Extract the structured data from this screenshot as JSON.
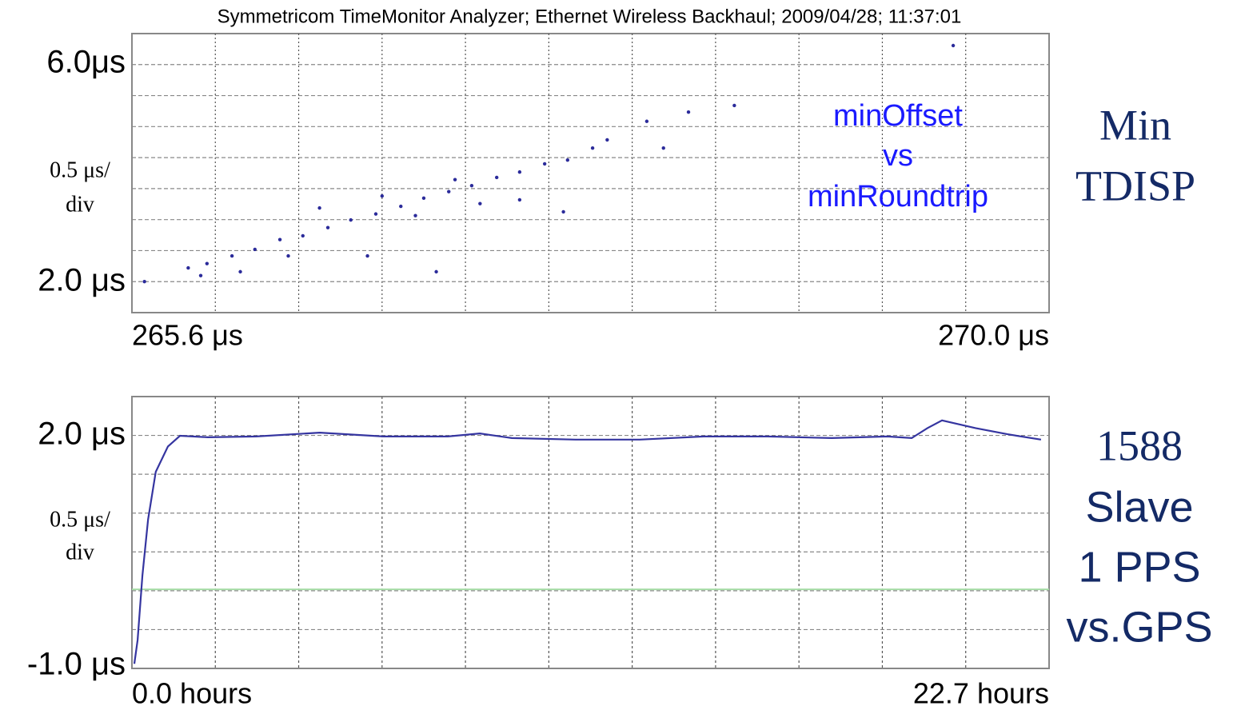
{
  "title": "Symmetricom TimeMonitor Analyzer;  Ethernet Wireless Backhaul;  2009/04/28; 11:37:01",
  "chart_data": [
    {
      "type": "scatter",
      "color": "#2b2b9a",
      "xlim": [
        265.6,
        270.0
      ],
      "xticks": [
        {
          "value": 265.6,
          "label": "265.6 μs"
        },
        {
          "value": 270.0,
          "label": "270.0 μs"
        }
      ],
      "ylim": [
        1.44,
        6.56
      ],
      "yticks": [
        {
          "value": 6.0,
          "label": "6.0μs"
        },
        {
          "value": 2.0,
          "label": "2.0 μs"
        }
      ],
      "grid": true,
      "grid_divisions": {
        "x": 11,
        "y": 9
      },
      "scale_label": [
        "0.5 μs/",
        "div"
      ],
      "annotation": [
        "minOffset",
        "vs",
        "minRoundtrip"
      ],
      "side_label": [
        "Min",
        "TDISP"
      ],
      "x": [
        265.66,
        265.87,
        265.96,
        266.08,
        266.19,
        266.31,
        266.42,
        266.54,
        266.65,
        266.77,
        266.89,
        267.0,
        267.12,
        267.23,
        267.35,
        267.46,
        267.58,
        267.69,
        267.81,
        268.07,
        268.27,
        268.49,
        269.54,
        266.12,
        266.5,
        266.73,
        267.06,
        267.46,
        267.67,
        268.15,
        267.88,
        265.93,
        266.35,
        266.96,
        267.27,
        266.8,
        267.15
      ],
      "values": [
        2.01,
        2.26,
        2.34,
        2.48,
        2.6,
        2.78,
        2.85,
        3.0,
        3.14,
        3.25,
        3.39,
        3.54,
        3.66,
        3.77,
        3.92,
        4.02,
        4.17,
        4.24,
        4.46,
        4.95,
        5.12,
        5.24,
        6.34,
        2.19,
        3.36,
        2.48,
        2.19,
        3.51,
        3.29,
        4.46,
        4.61,
        2.12,
        2.48,
        3.22,
        3.44,
        3.58,
        3.88
      ]
    },
    {
      "type": "line",
      "color": "#3535a0",
      "xlim": [
        0,
        22.7
      ],
      "xticks": [
        {
          "value": 0,
          "label": "0.0 hours"
        },
        {
          "value": 22.7,
          "label": "22.7 hours"
        }
      ],
      "ylim": [
        -1.03,
        2.51
      ],
      "yticks": [
        {
          "value": 2.0,
          "label": "2.0 μs"
        },
        {
          "value": -1.0,
          "label": "-1.0 μs"
        }
      ],
      "grid": true,
      "grid_divisions": {
        "x": 11,
        "y": 7
      },
      "reference_line": {
        "value": 0,
        "color": "#a6dca6"
      },
      "scale_label": [
        "0.5 μs/",
        "div"
      ],
      "side_label": [
        "1588",
        "Slave",
        "1 PPS",
        "vs.GPS"
      ],
      "x": [
        0.06,
        0.14,
        0.26,
        0.4,
        0.59,
        0.89,
        1.19,
        1.88,
        3.07,
        4.65,
        6.23,
        7.82,
        8.61,
        9.4,
        10.98,
        12.57,
        14.15,
        15.73,
        17.32,
        18.7,
        19.3,
        19.69,
        20.05,
        20.88,
        21.67,
        22.5
      ],
      "values": [
        -0.97,
        -0.66,
        0.18,
        0.91,
        1.53,
        1.86,
        2.0,
        1.98,
        1.99,
        2.04,
        1.99,
        1.99,
        2.03,
        1.97,
        1.95,
        1.95,
        1.99,
        1.99,
        1.97,
        1.99,
        1.97,
        2.1,
        2.2,
        2.1,
        2.02,
        1.95
      ]
    }
  ]
}
